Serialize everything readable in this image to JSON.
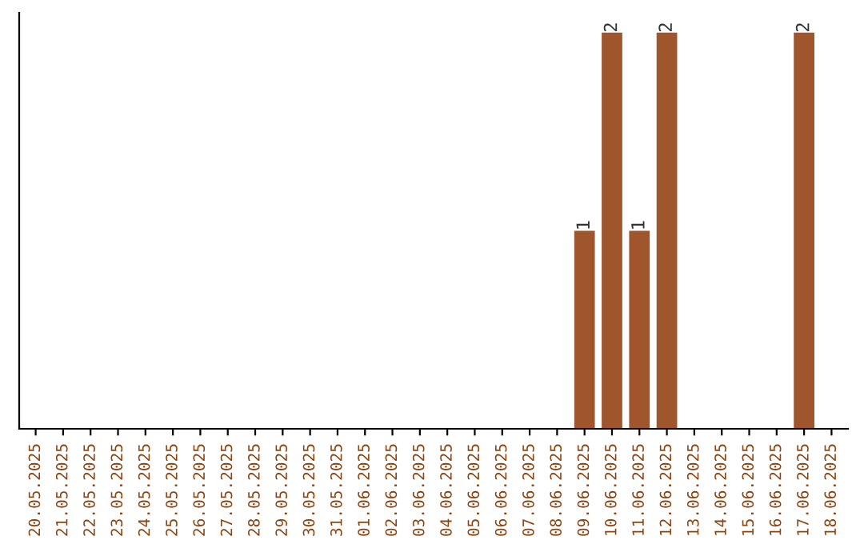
{
  "chart_data": {
    "type": "bar",
    "categories": [
      "20.05.2025",
      "21.05.2025",
      "22.05.2025",
      "23.05.2025",
      "24.05.2025",
      "25.05.2025",
      "26.05.2025",
      "27.05.2025",
      "28.05.2025",
      "29.05.2025",
      "30.05.2025",
      "31.05.2025",
      "01.06.2025",
      "02.06.2025",
      "03.06.2025",
      "04.06.2025",
      "05.06.2025",
      "06.06.2025",
      "07.06.2025",
      "08.06.2025",
      "09.06.2025",
      "10.06.2025",
      "11.06.2025",
      "12.06.2025",
      "13.06.2025",
      "14.06.2025",
      "15.06.2025",
      "16.06.2025",
      "17.06.2025",
      "18.06.2025"
    ],
    "values": [
      null,
      null,
      null,
      null,
      null,
      null,
      null,
      null,
      null,
      null,
      null,
      null,
      null,
      null,
      null,
      null,
      null,
      null,
      null,
      null,
      1,
      2,
      1,
      2,
      null,
      null,
      null,
      null,
      2,
      null
    ],
    "data_labels": true,
    "color": "#a0562c",
    "tick_labels": "x",
    "grid": false,
    "legend": false
  }
}
